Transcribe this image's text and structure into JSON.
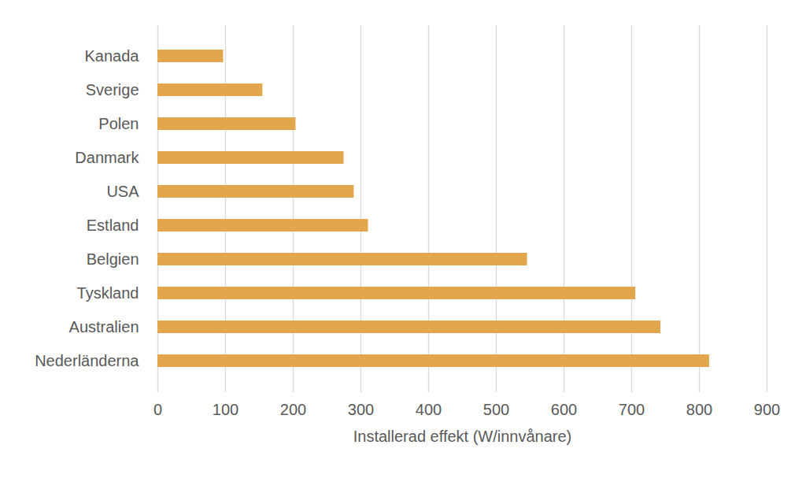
{
  "chart_data": {
    "type": "bar",
    "orientation": "horizontal",
    "categories": [
      "Kanada",
      "Sverige",
      "Polen",
      "Danmark",
      "USA",
      "Estland",
      "Belgien",
      "Tyskland",
      "Australien",
      "Nederländerna"
    ],
    "values": [
      97,
      155,
      204,
      275,
      290,
      311,
      546,
      706,
      743,
      815
    ],
    "color": "#e2a64c",
    "xlabel": "Installerad effekt (W/innvånare)",
    "xlim": [
      0,
      900
    ],
    "xticks": [
      0,
      100,
      200,
      300,
      400,
      500,
      600,
      700,
      800,
      900
    ],
    "grid": true
  }
}
